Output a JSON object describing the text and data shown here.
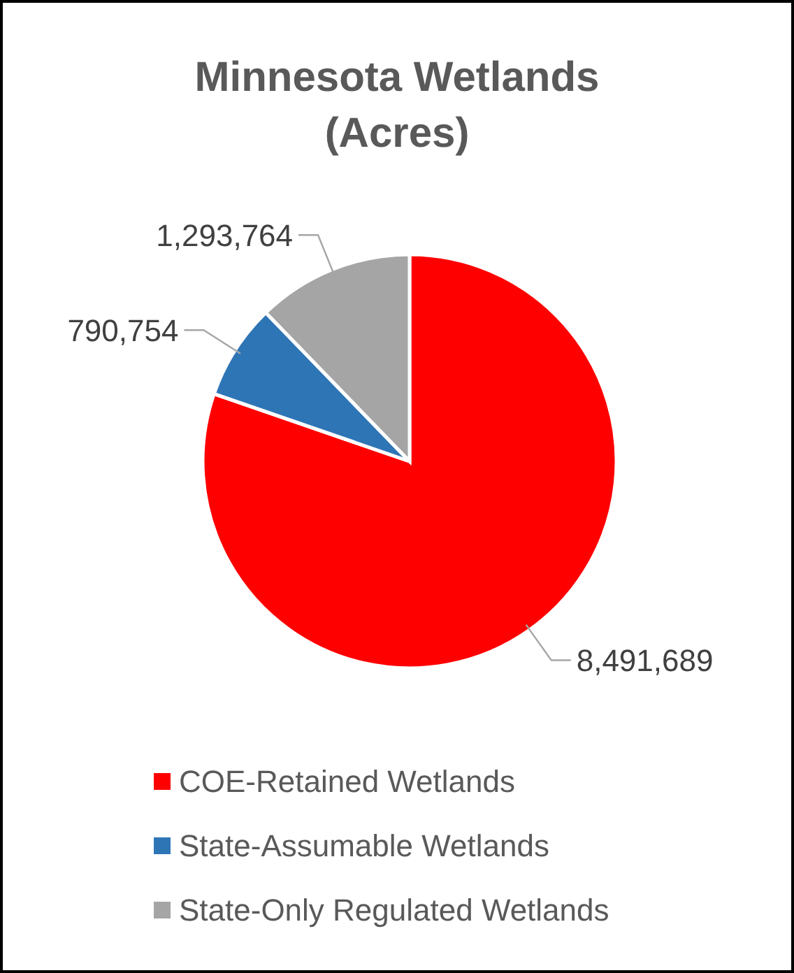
{
  "chart_data": {
    "type": "pie",
    "title": "Minnesota Wetlands (Acres)",
    "categories": [
      "COE-Retained Wetlands",
      "State-Assumable Wetlands",
      "State-Only Regulated Wetlands"
    ],
    "values": [
      8491689,
      790754,
      1293764
    ],
    "colors": [
      "#ff0000",
      "#2e75b6",
      "#a5a5a5"
    ],
    "value_labels": [
      "8,491,689",
      "790,754",
      "1,293,764"
    ],
    "legend": "bottom"
  }
}
